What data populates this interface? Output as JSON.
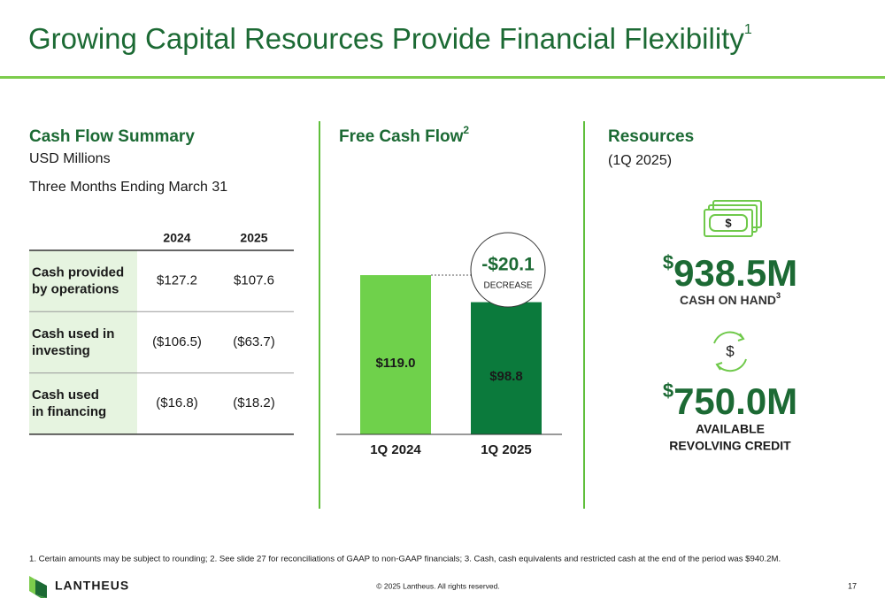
{
  "header": {
    "title": "Growing Capital Resources Provide Financial Flexibility",
    "title_note": "1"
  },
  "summary": {
    "title": "Cash Flow Summary",
    "unit": "USD Millions",
    "period": "Three Months Ending March 31"
  },
  "table": {
    "columns": [
      "2024",
      "2025"
    ],
    "rows": [
      {
        "label": [
          "Cash provided",
          "by operations"
        ],
        "values": [
          "$127.2",
          "$107.6"
        ]
      },
      {
        "label": [
          "Cash used in",
          "investing"
        ],
        "values": [
          "($106.5)",
          "($63.7)"
        ]
      },
      {
        "label": [
          "Cash used",
          "in financing"
        ],
        "values": [
          "($16.8)",
          "($18.2)"
        ]
      }
    ]
  },
  "chart_data": {
    "type": "bar",
    "title": "Free Cash Flow",
    "title_note": "2",
    "categories": [
      "1Q 2024",
      "1Q 2025"
    ],
    "values": [
      119.0,
      98.8
    ],
    "value_labels": [
      "$119.0",
      "$98.8"
    ],
    "colors": [
      "#6fd14b",
      "#0b7a3c"
    ],
    "annotation": {
      "label": "-$20.1",
      "sublabel": "DECREASE"
    }
  },
  "resources": {
    "title": "Resources",
    "period": "(1Q 2025)",
    "items": [
      {
        "currency": "$",
        "amount": "938.5M",
        "label": [
          "CASH ON HAND"
        ],
        "note": "3"
      },
      {
        "currency": "$",
        "amount": "750.0M",
        "label": [
          "AVAILABLE",
          "REVOLVING CREDIT"
        ]
      }
    ]
  },
  "footnote": "1. Certain amounts may be subject to rounding; 2. See slide 27 for reconciliations of GAAP to non-GAAP financials; 3. Cash, cash equivalents and restricted cash at the end of the period was $940.2M.",
  "footer": {
    "brand": "LANTHEUS",
    "copyright": "© 2025 Lantheus. All rights reserved.",
    "page": "17"
  }
}
